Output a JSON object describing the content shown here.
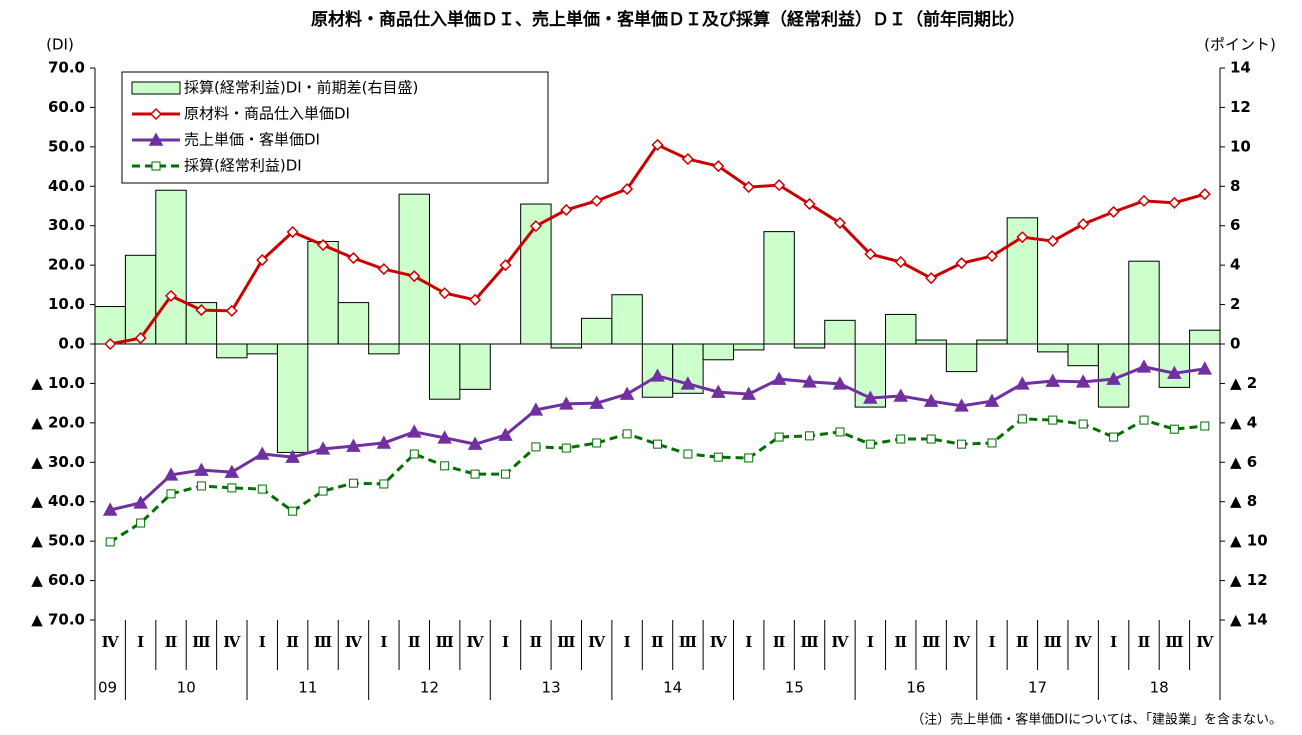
{
  "chart_data": {
    "type": "combo",
    "title": "原材料・商品仕入単価ＤＩ、売上単価・客単価ＤＩ及び採算（経常利益）ＤＩ（前年同期比）",
    "y_label": "(DI)",
    "y2_label": "(ポイント)",
    "note": "（注）売上単価・客単価DIについては、「建設業」を含まない。",
    "categories": [
      "Ⅳ",
      "Ⅰ",
      "Ⅱ",
      "Ⅲ",
      "Ⅳ",
      "Ⅰ",
      "Ⅱ",
      "Ⅲ",
      "Ⅳ",
      "Ⅰ",
      "Ⅱ",
      "Ⅲ",
      "Ⅳ",
      "Ⅰ",
      "Ⅱ",
      "Ⅲ",
      "Ⅳ",
      "Ⅰ",
      "Ⅱ",
      "Ⅲ",
      "Ⅳ",
      "Ⅰ",
      "Ⅱ",
      "Ⅲ",
      "Ⅳ",
      "Ⅰ",
      "Ⅱ",
      "Ⅲ",
      "Ⅳ",
      "Ⅰ",
      "Ⅱ",
      "Ⅲ",
      "Ⅳ",
      "Ⅰ",
      "Ⅱ",
      "Ⅲ",
      "Ⅳ"
    ],
    "x_groups": [
      {
        "label": "09",
        "count": 1
      },
      {
        "label": "10",
        "count": 4
      },
      {
        "label": "11",
        "count": 4
      },
      {
        "label": "12",
        "count": 4
      },
      {
        "label": "13",
        "count": 4
      },
      {
        "label": "14",
        "count": 4
      },
      {
        "label": "15",
        "count": 4
      },
      {
        "label": "16",
        "count": 4
      },
      {
        "label": "17",
        "count": 4
      },
      {
        "label": "18",
        "count": 4
      }
    ],
    "ylim": [
      -70,
      70
    ],
    "yticks": [
      {
        "value": 70,
        "label": "70.0"
      },
      {
        "value": 60,
        "label": "60.0"
      },
      {
        "value": 50,
        "label": "50.0"
      },
      {
        "value": 40,
        "label": "40.0"
      },
      {
        "value": 30,
        "label": "30.0"
      },
      {
        "value": 20,
        "label": "20.0"
      },
      {
        "value": 10,
        "label": "10.0"
      },
      {
        "value": 0,
        "label": "0.0"
      },
      {
        "value": -10,
        "label": "▲ 10.0"
      },
      {
        "value": -20,
        "label": "▲ 20.0"
      },
      {
        "value": -30,
        "label": "▲ 30.0"
      },
      {
        "value": -40,
        "label": "▲ 40.0"
      },
      {
        "value": -50,
        "label": "▲ 50.0"
      },
      {
        "value": -60,
        "label": "▲ 60.0"
      },
      {
        "value": -70,
        "label": "▲ 70.0"
      }
    ],
    "y2lim": [
      -14,
      14
    ],
    "y2ticks": [
      14,
      12,
      10,
      8,
      6,
      4,
      2,
      0,
      {
        "value": -2,
        "label": "▲ 2"
      },
      {
        "value": -4,
        "label": "▲ 4"
      },
      {
        "value": -6,
        "label": "▲ 6"
      },
      {
        "value": -8,
        "label": "▲ 8"
      },
      {
        "value": -10,
        "label": "▲ 10"
      },
      {
        "value": -12,
        "label": "▲ 12"
      },
      {
        "value": -14,
        "label": "▲ 14"
      }
    ],
    "series": [
      {
        "name": "採算(経常利益)DI・前期差(右目盛)",
        "type": "bar",
        "axis": "y2",
        "color": "#ccffcc",
        "values": [
          1.9,
          4.5,
          7.8,
          2.1,
          -0.7,
          -0.5,
          -5.5,
          5.2,
          2.1,
          -0.5,
          7.6,
          -2.8,
          -2.3,
          0.0,
          7.1,
          -0.2,
          1.3,
          2.5,
          -2.7,
          -2.5,
          -0.8,
          -0.3,
          5.7,
          -0.2,
          1.2,
          -3.2,
          1.5,
          0.2,
          -1.4,
          0.2,
          6.4,
          -0.4,
          -1.1,
          -3.2,
          4.2,
          -2.2,
          0.7
        ]
      },
      {
        "name": "原材料・商品仕入単価DI",
        "type": "line",
        "marker": "diamond",
        "color": "#cc0000",
        "values": [
          0.0,
          1.5,
          12.2,
          8.6,
          8.4,
          21.3,
          28.4,
          25.1,
          21.8,
          19.0,
          17.2,
          12.9,
          11.2,
          20.0,
          29.9,
          34.0,
          36.3,
          39.3,
          50.5,
          46.9,
          45.1,
          39.8,
          40.3,
          35.5,
          30.7,
          22.8,
          20.8,
          16.7,
          20.5,
          22.3,
          27.1,
          26.1,
          30.4,
          33.5,
          36.3,
          35.8,
          38.0
        ]
      },
      {
        "name": "売上単価・客単価DI",
        "type": "line",
        "marker": "triangle",
        "color": "#7030a0",
        "values": [
          -42.1,
          -40.3,
          -33.2,
          -32.0,
          -32.5,
          -27.9,
          -28.7,
          -26.6,
          -25.9,
          -25.1,
          -22.3,
          -23.8,
          -25.4,
          -23.1,
          -16.7,
          -15.2,
          -15.0,
          -12.7,
          -8.1,
          -10.1,
          -12.2,
          -12.7,
          -8.9,
          -9.6,
          -10.1,
          -13.7,
          -13.2,
          -14.5,
          -15.7,
          -14.5,
          -10.1,
          -9.4,
          -9.6,
          -8.9,
          -5.8,
          -7.4,
          -6.3
        ]
      },
      {
        "name": "採算(経常利益)DI",
        "type": "line",
        "marker": "square",
        "dashed": true,
        "color": "#007000",
        "values": [
          -50.2,
          -45.4,
          -38.0,
          -36.0,
          -36.5,
          -36.8,
          -42.4,
          -37.3,
          -35.3,
          -35.5,
          -27.9,
          -30.9,
          -33.0,
          -33.0,
          -26.1,
          -26.4,
          -25.1,
          -22.8,
          -25.4,
          -27.9,
          -28.7,
          -28.9,
          -23.6,
          -23.3,
          -22.3,
          -25.4,
          -24.1,
          -24.1,
          -25.4,
          -25.1,
          -19.0,
          -19.3,
          -20.3,
          -23.6,
          -19.3,
          -21.6,
          -20.8
        ]
      }
    ]
  }
}
